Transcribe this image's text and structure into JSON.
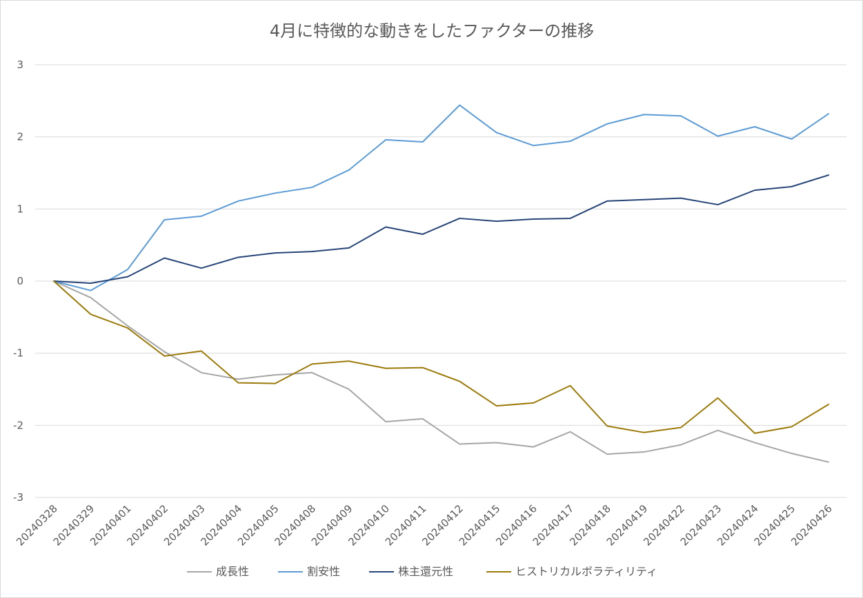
{
  "chart_data": {
    "type": "line",
    "title": "4月に特徴的な動きをしたファクターの推移",
    "xlabel": "",
    "ylabel": "",
    "ylim": [
      -3,
      3
    ],
    "yticks": [
      3,
      2,
      1,
      0,
      -1,
      -2,
      -3
    ],
    "ytick_labels": [
      "3",
      "2",
      "1",
      "0",
      "-1",
      "-2",
      "-3"
    ],
    "grid": "horizontal",
    "legend_position": "bottom",
    "categories": [
      "20240328",
      "20240329",
      "20240401",
      "20240402",
      "20240403",
      "20240404",
      "20240405",
      "20240408",
      "20240409",
      "20240410",
      "20240411",
      "20240412",
      "20240415",
      "20240416",
      "20240417",
      "20240418",
      "20240419",
      "20240422",
      "20240423",
      "20240424",
      "20240425",
      "20240426"
    ],
    "series": [
      {
        "name": "成長性",
        "color": "#a5a5a5",
        "values": [
          0,
          -0.23,
          -0.62,
          -0.98,
          -1.27,
          -1.36,
          -1.3,
          -1.27,
          -1.5,
          -1.95,
          -1.91,
          -2.26,
          -2.24,
          -2.3,
          -2.09,
          -2.4,
          -2.37,
          -2.27,
          -2.07,
          -2.24,
          -2.39,
          -2.51
        ]
      },
      {
        "name": "割安性",
        "color": "#5b9bd5",
        "values": [
          0,
          -0.13,
          0.16,
          0.85,
          0.9,
          1.11,
          1.22,
          1.3,
          1.54,
          1.96,
          1.93,
          2.44,
          2.06,
          1.88,
          1.94,
          2.18,
          2.31,
          2.29,
          2.01,
          2.14,
          1.97,
          2.32
        ]
      },
      {
        "name": "株主還元性",
        "color": "#264478",
        "values": [
          0,
          -0.03,
          0.06,
          0.32,
          0.18,
          0.33,
          0.39,
          0.41,
          0.46,
          0.75,
          0.65,
          0.87,
          0.83,
          0.86,
          0.87,
          1.11,
          1.13,
          1.15,
          1.06,
          1.26,
          1.31,
          1.47
        ]
      },
      {
        "name": "ヒストリカルボラティリティ",
        "color": "#9c7a0a",
        "values": [
          0,
          -0.46,
          -0.65,
          -1.04,
          -0.97,
          -1.41,
          -1.42,
          -1.15,
          -1.11,
          -1.21,
          -1.2,
          -1.39,
          -1.73,
          -1.69,
          -1.45,
          -2.01,
          -2.1,
          -2.03,
          -1.62,
          -2.11,
          -2.02,
          -1.71
        ]
      }
    ]
  }
}
